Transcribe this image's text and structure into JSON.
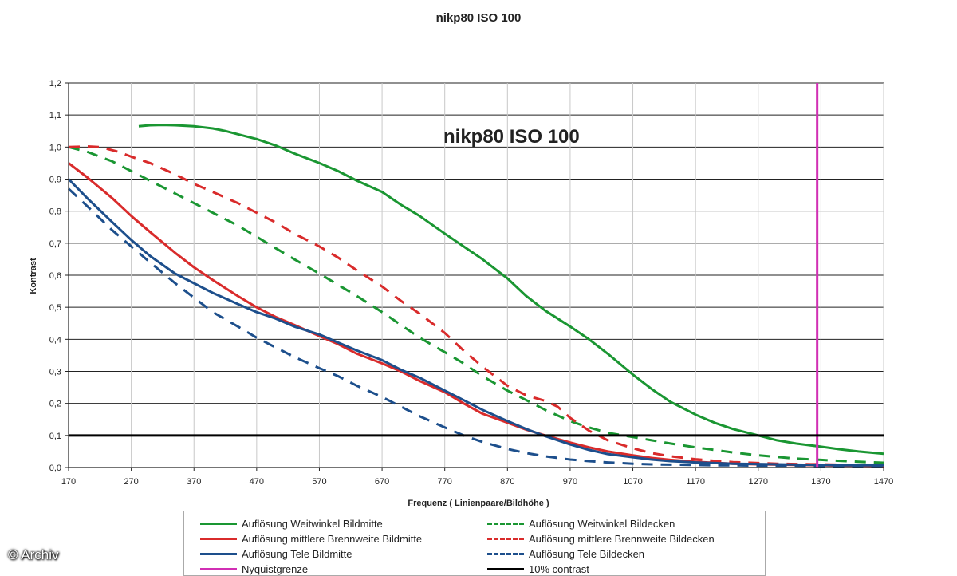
{
  "title": "nikp80 ISO 100",
  "watermark": "© Archiv",
  "chart_data": {
    "type": "line",
    "title": "nikp80 ISO 100",
    "inner_title": "nikp80 ISO 100",
    "xlabel": "Frequenz ( Linienpaare/Bildhöhe )",
    "ylabel": "Kontrast",
    "xlim": [
      170,
      1470
    ],
    "ylim": [
      0,
      1.2
    ],
    "x_ticks": [
      170,
      270,
      370,
      470,
      570,
      670,
      770,
      870,
      970,
      1070,
      1170,
      1270,
      1370,
      1470
    ],
    "y_ticks": [
      "0,0",
      "0,1",
      "0,2",
      "0,3",
      "0,4",
      "0,5",
      "0,6",
      "0,7",
      "0,8",
      "0,9",
      "1,0",
      "1,1",
      "1,2"
    ],
    "grid": true,
    "legend_position": "bottom",
    "series": [
      {
        "name": "Auflösung Weitwinkel Bildmitte",
        "color": "#1a9632",
        "dash": false,
        "points": [
          [
            282,
            1.065
          ],
          [
            300,
            1.068
          ],
          [
            320,
            1.069
          ],
          [
            340,
            1.068
          ],
          [
            370,
            1.065
          ],
          [
            400,
            1.058
          ],
          [
            420,
            1.05
          ],
          [
            450,
            1.035
          ],
          [
            470,
            1.025
          ],
          [
            500,
            1.005
          ],
          [
            530,
            0.98
          ],
          [
            570,
            0.95
          ],
          [
            600,
            0.925
          ],
          [
            630,
            0.895
          ],
          [
            670,
            0.86
          ],
          [
            700,
            0.82
          ],
          [
            730,
            0.785
          ],
          [
            770,
            0.73
          ],
          [
            800,
            0.69
          ],
          [
            830,
            0.65
          ],
          [
            870,
            0.59
          ],
          [
            900,
            0.535
          ],
          [
            930,
            0.49
          ],
          [
            970,
            0.44
          ],
          [
            1000,
            0.4
          ],
          [
            1030,
            0.355
          ],
          [
            1070,
            0.29
          ],
          [
            1100,
            0.245
          ],
          [
            1130,
            0.205
          ],
          [
            1170,
            0.165
          ],
          [
            1200,
            0.14
          ],
          [
            1230,
            0.12
          ],
          [
            1270,
            0.1
          ],
          [
            1300,
            0.085
          ],
          [
            1330,
            0.075
          ],
          [
            1370,
            0.065
          ],
          [
            1400,
            0.057
          ],
          [
            1430,
            0.05
          ],
          [
            1470,
            0.043
          ]
        ]
      },
      {
        "name": "Auflösung Weitwinkel Bildecken",
        "color": "#1a9632",
        "dash": true,
        "points": [
          [
            170,
            1.0
          ],
          [
            200,
            0.985
          ],
          [
            240,
            0.955
          ],
          [
            270,
            0.925
          ],
          [
            300,
            0.895
          ],
          [
            340,
            0.855
          ],
          [
            370,
            0.825
          ],
          [
            400,
            0.795
          ],
          [
            440,
            0.755
          ],
          [
            470,
            0.72
          ],
          [
            500,
            0.685
          ],
          [
            530,
            0.65
          ],
          [
            570,
            0.605
          ],
          [
            600,
            0.57
          ],
          [
            630,
            0.535
          ],
          [
            670,
            0.485
          ],
          [
            700,
            0.445
          ],
          [
            730,
            0.405
          ],
          [
            770,
            0.36
          ],
          [
            800,
            0.325
          ],
          [
            830,
            0.285
          ],
          [
            870,
            0.24
          ],
          [
            900,
            0.21
          ],
          [
            930,
            0.18
          ],
          [
            970,
            0.145
          ],
          [
            1000,
            0.125
          ],
          [
            1030,
            0.108
          ],
          [
            1070,
            0.095
          ],
          [
            1100,
            0.085
          ],
          [
            1130,
            0.075
          ],
          [
            1170,
            0.063
          ],
          [
            1200,
            0.055
          ],
          [
            1230,
            0.047
          ],
          [
            1270,
            0.038
          ],
          [
            1300,
            0.033
          ],
          [
            1330,
            0.028
          ],
          [
            1370,
            0.024
          ],
          [
            1400,
            0.021
          ],
          [
            1430,
            0.018
          ],
          [
            1470,
            0.015
          ]
        ]
      },
      {
        "name": "Auflösung mittlere Brennweite Bildmitte",
        "color": "#d92b2b",
        "dash": false,
        "points": [
          [
            170,
            0.95
          ],
          [
            200,
            0.905
          ],
          [
            240,
            0.84
          ],
          [
            270,
            0.785
          ],
          [
            300,
            0.735
          ],
          [
            340,
            0.67
          ],
          [
            370,
            0.625
          ],
          [
            400,
            0.585
          ],
          [
            440,
            0.535
          ],
          [
            470,
            0.5
          ],
          [
            500,
            0.47
          ],
          [
            530,
            0.445
          ],
          [
            570,
            0.41
          ],
          [
            600,
            0.385
          ],
          [
            630,
            0.355
          ],
          [
            670,
            0.325
          ],
          [
            700,
            0.3
          ],
          [
            730,
            0.27
          ],
          [
            770,
            0.235
          ],
          [
            800,
            0.2
          ],
          [
            830,
            0.168
          ],
          [
            870,
            0.14
          ],
          [
            900,
            0.118
          ],
          [
            930,
            0.1
          ],
          [
            970,
            0.078
          ],
          [
            1000,
            0.063
          ],
          [
            1030,
            0.05
          ],
          [
            1070,
            0.038
          ],
          [
            1100,
            0.03
          ],
          [
            1130,
            0.024
          ],
          [
            1170,
            0.018
          ],
          [
            1200,
            0.015
          ],
          [
            1230,
            0.012
          ],
          [
            1270,
            0.01
          ],
          [
            1300,
            0.009
          ],
          [
            1330,
            0.008
          ],
          [
            1370,
            0.007
          ],
          [
            1400,
            0.006
          ],
          [
            1430,
            0.006
          ],
          [
            1470,
            0.005
          ]
        ]
      },
      {
        "name": "Auflösung mittlere Brennweite Bildecken",
        "color": "#d92b2b",
        "dash": true,
        "points": [
          [
            170,
            1.0
          ],
          [
            200,
            1.002
          ],
          [
            220,
            1.0
          ],
          [
            250,
            0.985
          ],
          [
            270,
            0.97
          ],
          [
            300,
            0.95
          ],
          [
            340,
            0.915
          ],
          [
            370,
            0.885
          ],
          [
            400,
            0.86
          ],
          [
            440,
            0.825
          ],
          [
            470,
            0.795
          ],
          [
            500,
            0.765
          ],
          [
            530,
            0.73
          ],
          [
            570,
            0.69
          ],
          [
            600,
            0.655
          ],
          [
            630,
            0.615
          ],
          [
            670,
            0.565
          ],
          [
            700,
            0.52
          ],
          [
            730,
            0.48
          ],
          [
            770,
            0.42
          ],
          [
            800,
            0.365
          ],
          [
            830,
            0.315
          ],
          [
            870,
            0.255
          ],
          [
            900,
            0.225
          ],
          [
            930,
            0.208
          ],
          [
            950,
            0.19
          ],
          [
            970,
            0.155
          ],
          [
            1000,
            0.115
          ],
          [
            1030,
            0.085
          ],
          [
            1070,
            0.06
          ],
          [
            1100,
            0.045
          ],
          [
            1130,
            0.035
          ],
          [
            1170,
            0.026
          ],
          [
            1200,
            0.021
          ],
          [
            1230,
            0.017
          ],
          [
            1270,
            0.014
          ],
          [
            1300,
            0.012
          ],
          [
            1330,
            0.011
          ],
          [
            1370,
            0.01
          ],
          [
            1400,
            0.009
          ],
          [
            1430,
            0.008
          ],
          [
            1470,
            0.008
          ]
        ]
      },
      {
        "name": "Auflösung Tele Bildmitte",
        "color": "#1d4f8c",
        "dash": false,
        "points": [
          [
            170,
            0.9
          ],
          [
            200,
            0.84
          ],
          [
            240,
            0.765
          ],
          [
            270,
            0.71
          ],
          [
            300,
            0.66
          ],
          [
            340,
            0.605
          ],
          [
            370,
            0.575
          ],
          [
            400,
            0.545
          ],
          [
            440,
            0.51
          ],
          [
            470,
            0.485
          ],
          [
            500,
            0.465
          ],
          [
            530,
            0.44
          ],
          [
            570,
            0.415
          ],
          [
            600,
            0.39
          ],
          [
            630,
            0.365
          ],
          [
            670,
            0.335
          ],
          [
            700,
            0.305
          ],
          [
            730,
            0.28
          ],
          [
            770,
            0.24
          ],
          [
            800,
            0.21
          ],
          [
            830,
            0.18
          ],
          [
            870,
            0.145
          ],
          [
            900,
            0.12
          ],
          [
            930,
            0.098
          ],
          [
            970,
            0.072
          ],
          [
            1000,
            0.055
          ],
          [
            1030,
            0.042
          ],
          [
            1070,
            0.032
          ],
          [
            1100,
            0.025
          ],
          [
            1130,
            0.02
          ],
          [
            1170,
            0.016
          ],
          [
            1200,
            0.014
          ],
          [
            1230,
            0.012
          ],
          [
            1270,
            0.011
          ],
          [
            1300,
            0.01
          ],
          [
            1330,
            0.009
          ],
          [
            1370,
            0.008
          ],
          [
            1400,
            0.007
          ],
          [
            1430,
            0.007
          ],
          [
            1470,
            0.007
          ]
        ]
      },
      {
        "name": "Auflösung Tele Bildecken",
        "color": "#1d4f8c",
        "dash": true,
        "points": [
          [
            170,
            0.87
          ],
          [
            200,
            0.815
          ],
          [
            240,
            0.74
          ],
          [
            270,
            0.69
          ],
          [
            300,
            0.64
          ],
          [
            340,
            0.575
          ],
          [
            370,
            0.53
          ],
          [
            400,
            0.485
          ],
          [
            440,
            0.44
          ],
          [
            470,
            0.405
          ],
          [
            500,
            0.375
          ],
          [
            530,
            0.345
          ],
          [
            570,
            0.31
          ],
          [
            600,
            0.285
          ],
          [
            630,
            0.255
          ],
          [
            670,
            0.22
          ],
          [
            700,
            0.19
          ],
          [
            730,
            0.16
          ],
          [
            770,
            0.125
          ],
          [
            800,
            0.1
          ],
          [
            830,
            0.08
          ],
          [
            870,
            0.058
          ],
          [
            900,
            0.045
          ],
          [
            930,
            0.035
          ],
          [
            970,
            0.025
          ],
          [
            1000,
            0.02
          ],
          [
            1030,
            0.016
          ],
          [
            1070,
            0.012
          ],
          [
            1100,
            0.01
          ],
          [
            1130,
            0.009
          ],
          [
            1170,
            0.008
          ],
          [
            1200,
            0.007
          ],
          [
            1230,
            0.007
          ],
          [
            1270,
            0.006
          ],
          [
            1300,
            0.006
          ],
          [
            1330,
            0.006
          ],
          [
            1370,
            0.005
          ],
          [
            1400,
            0.005
          ],
          [
            1430,
            0.005
          ],
          [
            1470,
            0.005
          ]
        ]
      },
      {
        "name": "Nyquistgrenze",
        "color": "#d12fb4",
        "dash": false,
        "vertical_at_x": 1364
      },
      {
        "name": "10% contrast",
        "color": "#000000",
        "dash": false,
        "horizontal_at_y": 0.1
      }
    ]
  },
  "legend": {
    "items": [
      {
        "label": "Auflösung Weitwinkel Bildmitte",
        "color": "#1a9632",
        "dash": false
      },
      {
        "label": "Auflösung Weitwinkel Bildecken",
        "color": "#1a9632",
        "dash": true
      },
      {
        "label": "Auflösung mittlere Brennweite Bildmitte",
        "color": "#d92b2b",
        "dash": false
      },
      {
        "label": "Auflösung mittlere Brennweite Bildecken",
        "color": "#d92b2b",
        "dash": true
      },
      {
        "label": "Auflösung Tele Bildmitte",
        "color": "#1d4f8c",
        "dash": false
      },
      {
        "label": "Auflösung Tele Bildecken",
        "color": "#1d4f8c",
        "dash": true
      },
      {
        "label": "Nyquistgrenze",
        "color": "#d12fb4",
        "dash": false
      },
      {
        "label": "10% contrast",
        "color": "#000000",
        "dash": false
      }
    ]
  }
}
